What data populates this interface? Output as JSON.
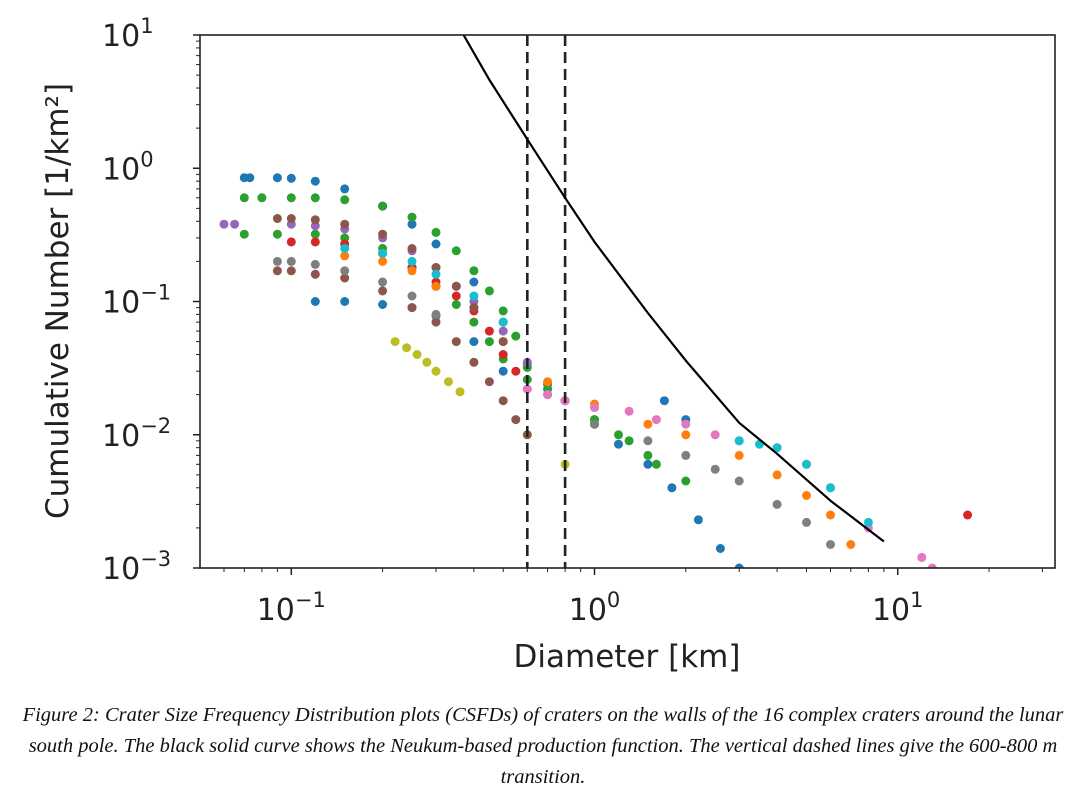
{
  "chart_data": {
    "type": "scatter",
    "title": "",
    "xlabel": "Diameter [km]",
    "ylabel": "Cumulative Number [1/km²]",
    "xscale": "log",
    "yscale": "log",
    "xlim": [
      0.05,
      33
    ],
    "ylim": [
      0.001,
      10
    ],
    "x_ticks": [
      {
        "value": 0.1,
        "base": "10",
        "exp": "−1"
      },
      {
        "value": 1,
        "base": "10",
        "exp": "0"
      },
      {
        "value": 10,
        "base": "10",
        "exp": "1"
      }
    ],
    "y_ticks": [
      {
        "value": 10,
        "base": "10",
        "exp": "1"
      },
      {
        "value": 1,
        "base": "10",
        "exp": "0"
      },
      {
        "value": 0.1,
        "base": "10",
        "exp": "−1"
      },
      {
        "value": 0.01,
        "base": "10",
        "exp": "−2"
      },
      {
        "value": 0.001,
        "base": "10",
        "exp": "−3"
      }
    ],
    "grid": false,
    "legend": "none",
    "production_function": {
      "style": "black solid line",
      "color": "#000000",
      "x": [
        0.37,
        0.45,
        0.6,
        0.8,
        1.0,
        1.5,
        2.0,
        3.0,
        4.0,
        6.0,
        9.0
      ],
      "y": [
        10.0,
        4.6,
        1.65,
        0.6,
        0.28,
        0.082,
        0.036,
        0.0123,
        0.0072,
        0.0032,
        0.00158
      ]
    },
    "reference_lines": [
      {
        "orientation": "vertical",
        "style": "dashed",
        "color": "#222222",
        "x": 0.6
      },
      {
        "orientation": "vertical",
        "style": "dashed",
        "color": "#222222",
        "x": 0.8
      }
    ],
    "series": [
      {
        "color": "#1f77b4",
        "x": [
          0.07,
          0.073,
          0.09,
          0.1,
          0.12,
          0.15,
          0.2,
          0.25,
          0.3,
          0.4,
          0.5,
          0.6,
          0.7,
          0.8,
          1.0,
          1.2,
          1.5,
          1.8,
          2.2,
          2.6,
          3.0
        ],
        "y": [
          0.85,
          0.85,
          0.85,
          0.84,
          0.8,
          0.7,
          0.52,
          0.38,
          0.27,
          0.14,
          0.07,
          0.034,
          0.024,
          0.018,
          0.012,
          0.0085,
          0.006,
          0.004,
          0.0023,
          0.0014,
          0.001
        ]
      },
      {
        "color": "#1f77b4",
        "x": [
          0.12,
          0.15,
          0.2,
          0.25,
          0.3,
          0.4,
          0.5,
          1.7,
          2.0
        ],
        "y": [
          0.1,
          0.1,
          0.095,
          0.09,
          0.078,
          0.05,
          0.03,
          0.018,
          0.013
        ]
      },
      {
        "color": "#2ca02c",
        "x": [
          0.07,
          0.08,
          0.1,
          0.12,
          0.15,
          0.2,
          0.25,
          0.3,
          0.35,
          0.4,
          0.45,
          0.5,
          0.55,
          0.6,
          0.7,
          0.8,
          1.0,
          1.2,
          1.5,
          2.0
        ],
        "y": [
          0.6,
          0.6,
          0.6,
          0.6,
          0.58,
          0.52,
          0.43,
          0.33,
          0.24,
          0.17,
          0.12,
          0.085,
          0.055,
          0.032,
          0.022,
          0.018,
          0.013,
          0.01,
          0.007,
          0.0045
        ]
      },
      {
        "color": "#2ca02c",
        "x": [
          0.07,
          0.09,
          0.12,
          0.15,
          0.2,
          0.25,
          0.3,
          0.35,
          0.4,
          0.45,
          0.5,
          0.6,
          0.8,
          1.0,
          1.3,
          1.6
        ],
        "y": [
          0.32,
          0.32,
          0.32,
          0.3,
          0.25,
          0.18,
          0.13,
          0.095,
          0.07,
          0.05,
          0.037,
          0.026,
          0.018,
          0.013,
          0.009,
          0.006
        ]
      },
      {
        "color": "#d62728",
        "x": [
          0.1,
          0.12,
          0.15,
          0.2,
          0.25,
          0.3,
          0.35,
          0.4,
          0.45,
          0.5,
          0.55,
          17.0
        ],
        "y": [
          0.28,
          0.28,
          0.27,
          0.23,
          0.18,
          0.14,
          0.11,
          0.085,
          0.06,
          0.04,
          0.03,
          0.0025
        ]
      },
      {
        "color": "#ff7f0e",
        "x": [
          0.15,
          0.2,
          0.25,
          0.3,
          0.4,
          0.5,
          0.7,
          1.0,
          1.5,
          2.0,
          3.0,
          4.0,
          5.0,
          6.0,
          7.0
        ],
        "y": [
          0.22,
          0.2,
          0.17,
          0.13,
          0.09,
          0.05,
          0.025,
          0.017,
          0.012,
          0.01,
          0.007,
          0.005,
          0.0035,
          0.0025,
          0.0015
        ]
      },
      {
        "color": "#9467bd",
        "x": [
          0.06,
          0.065,
          0.1,
          0.12,
          0.15,
          0.2,
          0.25,
          0.3,
          0.35,
          0.4,
          0.5,
          0.6,
          0.7
        ],
        "y": [
          0.38,
          0.38,
          0.38,
          0.37,
          0.35,
          0.3,
          0.24,
          0.18,
          0.13,
          0.1,
          0.06,
          0.035,
          0.02
        ]
      },
      {
        "color": "#8c564b",
        "x": [
          0.09,
          0.1,
          0.12,
          0.15,
          0.2,
          0.25,
          0.3,
          0.35,
          0.4,
          0.45,
          0.5,
          0.55,
          0.6
        ],
        "y": [
          0.17,
          0.17,
          0.16,
          0.15,
          0.12,
          0.09,
          0.07,
          0.05,
          0.035,
          0.025,
          0.018,
          0.013,
          0.01
        ]
      },
      {
        "color": "#8c564b",
        "x": [
          0.09,
          0.1,
          0.12,
          0.15,
          0.2,
          0.25,
          0.3,
          0.35,
          0.4,
          0.5
        ],
        "y": [
          0.42,
          0.42,
          0.41,
          0.38,
          0.32,
          0.25,
          0.18,
          0.13,
          0.09,
          0.05
        ]
      },
      {
        "color": "#e377c2",
        "x": [
          0.6,
          0.7,
          0.8,
          1.0,
          1.3,
          1.6,
          2.0,
          2.5,
          3.0,
          4.0,
          5.0,
          6.0,
          8.0,
          12.0,
          13.0
        ],
        "y": [
          0.022,
          0.02,
          0.018,
          0.016,
          0.015,
          0.013,
          0.012,
          0.01,
          0.009,
          0.008,
          0.006,
          0.004,
          0.002,
          0.0012,
          0.001
        ]
      },
      {
        "color": "#7f7f7f",
        "x": [
          0.09,
          0.1,
          0.12,
          0.15,
          0.2,
          0.25,
          0.3,
          1.0,
          1.5,
          2.0,
          2.5,
          3.0,
          4.0,
          5.0,
          6.0
        ],
        "y": [
          0.2,
          0.2,
          0.19,
          0.17,
          0.14,
          0.11,
          0.08,
          0.012,
          0.009,
          0.007,
          0.0055,
          0.0045,
          0.003,
          0.0022,
          0.0015
        ]
      },
      {
        "color": "#bcbd22",
        "x": [
          0.22,
          0.24,
          0.26,
          0.28,
          0.3,
          0.33,
          0.36,
          0.8
        ],
        "y": [
          0.05,
          0.045,
          0.04,
          0.035,
          0.03,
          0.025,
          0.021,
          0.006
        ]
      },
      {
        "color": "#17becf",
        "x": [
          0.15,
          0.2,
          0.25,
          0.3,
          0.4,
          0.5,
          3.0,
          3.5,
          4.0,
          5.0,
          6.0,
          8.0
        ],
        "y": [
          0.25,
          0.23,
          0.2,
          0.16,
          0.11,
          0.07,
          0.009,
          0.0085,
          0.008,
          0.006,
          0.004,
          0.0022
        ]
      }
    ]
  },
  "caption": "Figure 2: Crater Size Frequency Distribution plots (CSFDs) of craters on the walls of the 16 complex craters around the lunar south pole. The black solid curve shows the Neukum-based production function. The vertical dashed lines give the 600-800 m transition."
}
